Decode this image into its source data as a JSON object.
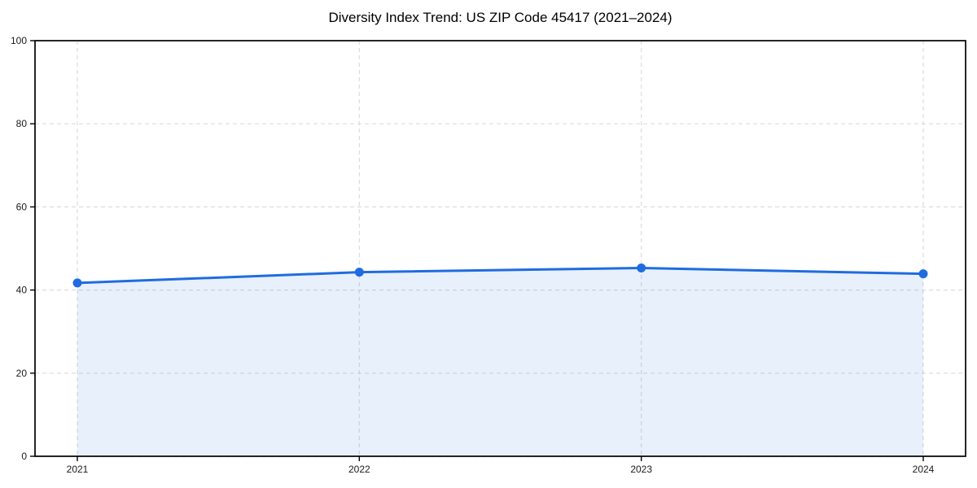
{
  "figure": {
    "background": "#ffffff"
  },
  "chart_data": {
    "type": "line",
    "title": "Diversity Index Trend: US ZIP Code 45417 (2021–2024)",
    "categories": [
      "2021",
      "2022",
      "2023",
      "2024"
    ],
    "series": [
      {
        "name": "Diversity Index",
        "values": [
          41.7,
          44.3,
          45.3,
          43.9
        ]
      }
    ],
    "xlabel": "",
    "ylabel": "",
    "ylim": [
      0,
      100
    ],
    "yticks": [
      0,
      20,
      40,
      60,
      80,
      100
    ],
    "grid": true,
    "grid_line_style": "dashed",
    "legend_position": "none",
    "area_fill": true,
    "style": {
      "line_color": "#1f6ce0",
      "marker_color": "#1f6ce0",
      "area_fill_color": "#1f6ce0",
      "area_fill_opacity": 0.1,
      "grid_color": "#dcdcdc",
      "axis_color": "#000000",
      "tick_label_color": "#1a1a1a",
      "title_color": "#000000"
    }
  }
}
